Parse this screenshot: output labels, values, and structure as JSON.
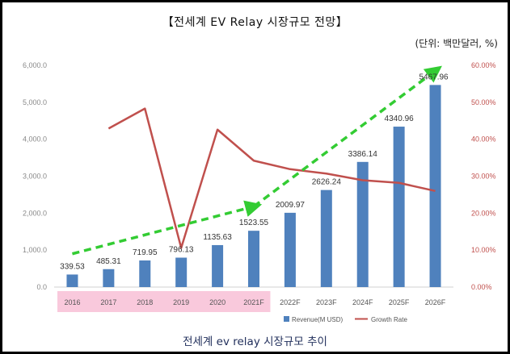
{
  "title": "【전세계 EV Relay 시장규모 전망】",
  "unit_note": "(단위: 백만달러, %)",
  "caption": "전세계 ev relay 시장규모 추이",
  "colors": {
    "bar": "#4f81bd",
    "line": "#c0504d",
    "arrow": "#33cc33",
    "highlight": "#f9c9dc",
    "left_axis_text": "#888888",
    "right_axis_text": "#c0504d"
  },
  "chart_data": {
    "type": "bar",
    "categories": [
      "2016",
      "2017",
      "2018",
      "2019",
      "2020",
      "2021F",
      "2022F",
      "2023F",
      "2024F",
      "2025F",
      "2026F"
    ],
    "series": [
      {
        "name": "Revenue(M USD)",
        "type": "bar",
        "axis": "left",
        "values": [
          339.53,
          485.31,
          719.95,
          796.13,
          1135.63,
          1523.55,
          2009.97,
          2626.24,
          3386.14,
          4340.96,
          5467.96
        ],
        "labels": [
          "339.53",
          "485.31",
          "719.95",
          "796.13",
          "1135.63",
          "1523.55",
          "2009.97",
          "2626.24",
          "3386.14",
          "4340.96",
          "5467.96"
        ]
      },
      {
        "name": "Growth Rate",
        "type": "line",
        "axis": "right",
        "values": [
          null,
          42.9,
          48.3,
          10.6,
          42.6,
          34.2,
          31.9,
          30.7,
          28.9,
          28.2,
          26.0
        ]
      }
    ],
    "y_left": {
      "min": 0,
      "max": 6000,
      "ticks": [
        "0.0",
        "1,000.0",
        "2,000.0",
        "3,000.0",
        "4,000.0",
        "5,000.0",
        "6,000.0"
      ]
    },
    "y_right": {
      "min": 0,
      "max": 60,
      "ticks": [
        "0.00%",
        "10.00%",
        "20.00%",
        "30.00%",
        "40.00%",
        "50.00%",
        "60.00%"
      ]
    },
    "highlighted_categories": [
      "2016",
      "2017",
      "2018",
      "2019",
      "2020",
      "2021F"
    ],
    "trend_arrows": [
      {
        "from": [
          "2016",
          900
        ],
        "to": [
          "2021F",
          2180
        ]
      },
      {
        "from": [
          "2021F",
          2180
        ],
        "to": [
          "2026F",
          5850
        ]
      }
    ],
    "legend": {
      "position": "bottom"
    },
    "grid": false
  }
}
